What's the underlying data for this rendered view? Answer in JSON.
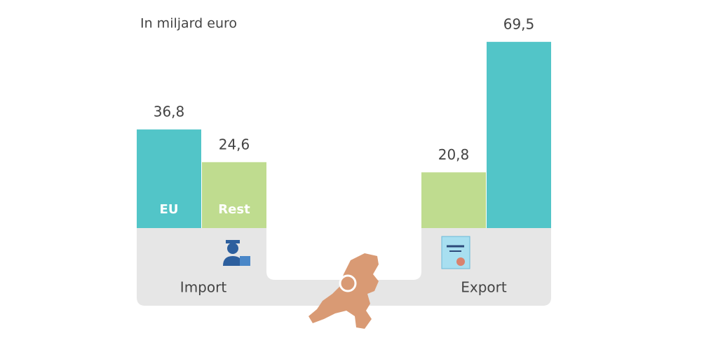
{
  "chart_data": {
    "type": "bar",
    "title": "In miljard euro",
    "categories": [
      "Import",
      "Export"
    ],
    "series": [
      {
        "name": "EU",
        "color": "#52c5c8",
        "values": [
          36.8,
          69.5
        ],
        "value_labels": [
          "36,8",
          "69,5"
        ]
      },
      {
        "name": "Rest",
        "color": "#bfdc8f",
        "values": [
          24.6,
          20.8
        ],
        "value_labels": [
          "24,6",
          "20,8"
        ]
      }
    ]
  }
}
